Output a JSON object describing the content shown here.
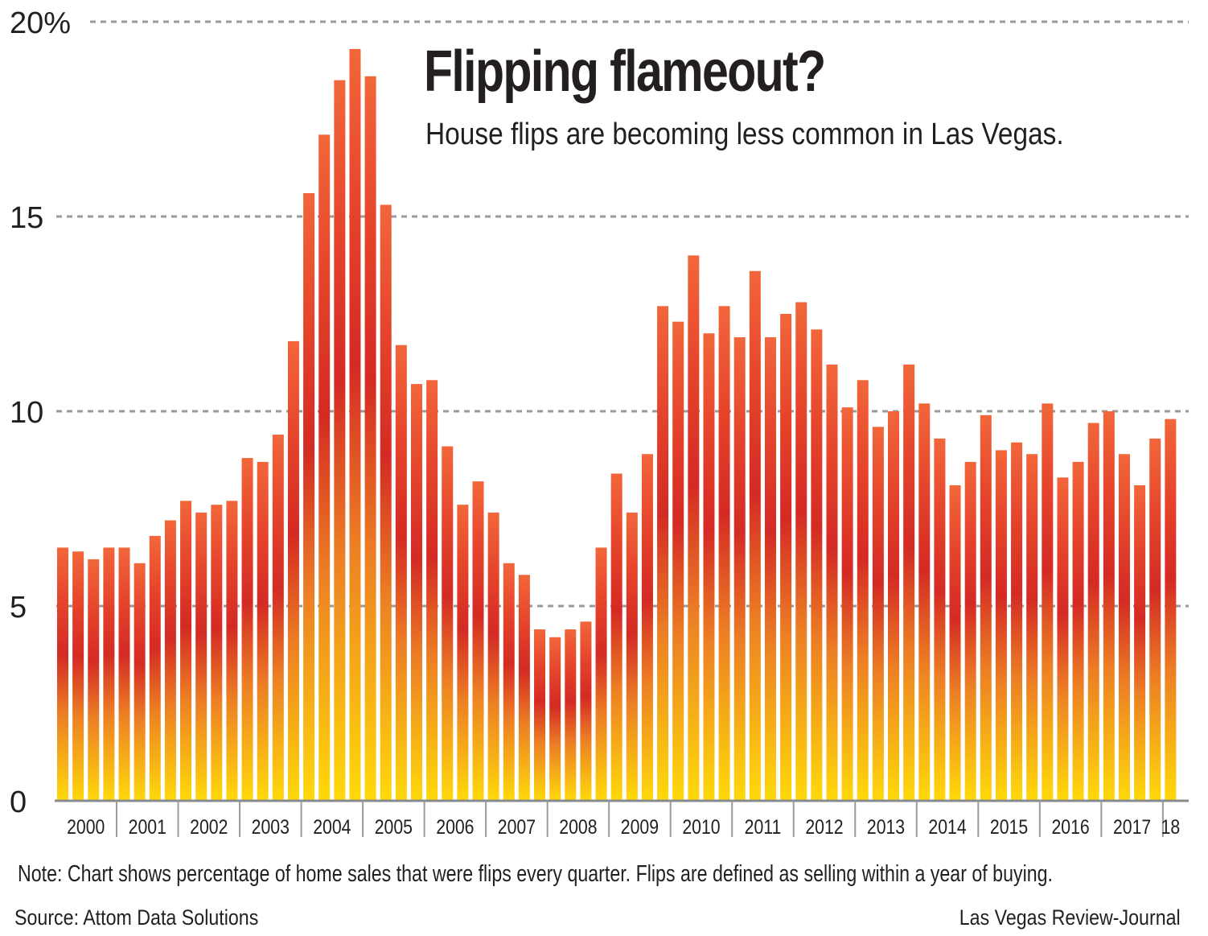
{
  "title": "Flipping flameout?",
  "subtitle": "House flips are becoming less common in Las Vegas.",
  "note": "Note: Chart shows percentage of home sales that were flips every quarter. Flips are defined as selling within a year of buying.",
  "source": "Source: Attom Data Solutions",
  "credit": "Las Vegas Review-Journal",
  "colors": {
    "bar_bottom": "#ffd60a",
    "bar_mid": "#d92b25",
    "bar_top": "#f0603a",
    "grid": "#9a9a9a",
    "text": "#231f20"
  },
  "chart_data": {
    "type": "bar",
    "ylim": [
      0,
      20
    ],
    "yticks": [
      {
        "value": 0,
        "label": "0"
      },
      {
        "value": 5,
        "label": "5"
      },
      {
        "value": 10,
        "label": "10"
      },
      {
        "value": 15,
        "label": "15"
      },
      {
        "value": 20,
        "label": "20%"
      }
    ],
    "grid": "dashed horizontal",
    "year_labels": [
      "2000",
      "2001",
      "2002",
      "2003",
      "2004",
      "2005",
      "2006",
      "2007",
      "2008",
      "2009",
      "2010",
      "2011",
      "2012",
      "2013",
      "2014",
      "2015",
      "2016",
      "2017",
      "18"
    ],
    "values": [
      6.5,
      6.4,
      6.2,
      6.5,
      6.5,
      6.1,
      6.8,
      7.2,
      7.7,
      7.4,
      7.6,
      7.7,
      8.8,
      8.7,
      9.4,
      11.8,
      15.6,
      17.1,
      18.5,
      19.3,
      18.6,
      15.3,
      11.7,
      10.7,
      10.8,
      9.1,
      7.6,
      8.2,
      7.4,
      6.1,
      5.8,
      4.4,
      4.2,
      4.4,
      4.6,
      6.5,
      8.4,
      7.4,
      8.9,
      12.7,
      12.3,
      14.0,
      12.0,
      12.7,
      11.9,
      13.6,
      11.9,
      12.5,
      12.8,
      12.1,
      11.2,
      10.1,
      10.8,
      9.6,
      10.0,
      11.2,
      10.2,
      9.3,
      8.1,
      8.7,
      9.9,
      9.0,
      9.2,
      8.9,
      10.2,
      8.3,
      8.7,
      9.7,
      10.0,
      8.9,
      8.1,
      9.3,
      9.8
    ]
  }
}
